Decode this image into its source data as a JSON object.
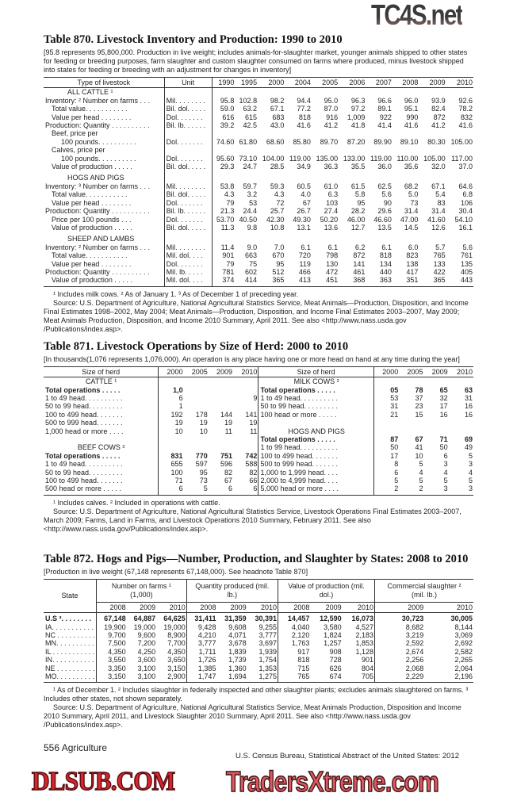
{
  "t870": {
    "title": "Table 870. Livestock Inventory and Production: 1990 to 2010",
    "headnote": "[95.8 represents 95,800,000. Production in live weight; includes animals-for-slaughter market, younger animals shipped to other states for feeding or breeding purposes, farm slaughter and custom slaughter consumed on farms where produced, minus livestock shipped into states for feeding or breeding with an adjustment for changes in inventory]",
    "col_type": "Type of livestock",
    "col_unit": "Unit",
    "years": [
      "1990",
      "1995",
      "2000",
      "2004",
      "2005",
      "2006",
      "2007",
      "2008",
      "2009",
      "2010"
    ],
    "rows": [
      {
        "kind": "section",
        "label": "ALL CATTLE ¹"
      },
      {
        "label": "Inventory: ² Number on farms . . .",
        "indent": 0,
        "unit": "Mil. . . . . . . .",
        "values": [
          "95.8",
          "102.8",
          "98.2",
          "94.4",
          "95.0",
          "96.3",
          "96.6",
          "96.0",
          "93.9",
          "92.6"
        ]
      },
      {
        "label": "Total value. . . . . . . . . . .",
        "indent": 1,
        "unit": "Bil. dol. . . . .",
        "values": [
          "59.0",
          "63.2",
          "67.1",
          "77.2",
          "87.0",
          "97.2",
          "89.1",
          "95.1",
          "82.4",
          "78.2"
        ]
      },
      {
        "label": "Value per head . . . . . . . .",
        "indent": 1,
        "unit": "Dol. . . . . . .",
        "values": [
          "616",
          "615",
          "683",
          "818",
          "916",
          "1,009",
          "922",
          "990",
          "872",
          "832"
        ]
      },
      {
        "label": "Production: Quantity . . . . . . . . . .",
        "indent": 0,
        "unit": "Bil. lb. . . . . .",
        "values": [
          "39.2",
          "42.5",
          "43.0",
          "41.6",
          "41.2",
          "41.8",
          "41.4",
          "41.6",
          "41.2",
          "41.6"
        ]
      },
      {
        "label": "Beef, price per",
        "indent": 1,
        "unit": "",
        "values": []
      },
      {
        "label": "100 pounds. . . . . . . . . .",
        "indent": 2,
        "unit": "Dol. . . . . . .",
        "values": [
          "74.60",
          "61.80",
          "68.60",
          "85.80",
          "89.70",
          "87.20",
          "89.90",
          "89.10",
          "80.30",
          "105.00"
        ]
      },
      {
        "label": "Calves, price per",
        "indent": 1,
        "unit": "",
        "values": []
      },
      {
        "label": "100 pounds. . . . . . . . . .",
        "indent": 2,
        "unit": "Dol. . . . . . .",
        "values": [
          "95.60",
          "73.10",
          "104.00",
          "119.00",
          "135.00",
          "133.00",
          "119.00",
          "110.00",
          "105.00",
          "117.00"
        ]
      },
      {
        "label": "Value of production . . . . .",
        "indent": 1,
        "unit": "Bil. dol. . . . .",
        "values": [
          "29.3",
          "24.7",
          "28.5",
          "34.9",
          "36.3",
          "35.5",
          "36.0",
          "35.6",
          "32.0",
          "37.0"
        ]
      },
      {
        "kind": "section",
        "label": "HOGS AND PIGS"
      },
      {
        "label": "Inventory: ³ Number on farms . . .",
        "indent": 0,
        "unit": "Mil. . . . . . . .",
        "values": [
          "53.8",
          "59.7",
          "59.3",
          "60.5",
          "61.0",
          "61.5",
          "62.5",
          "68.2",
          "67.1",
          "64.6"
        ]
      },
      {
        "label": "Total value. . . . . . . . . . .",
        "indent": 1,
        "unit": "Bil. dol. . . . .",
        "values": [
          "4.3",
          "3.2",
          "4.3",
          "4.0",
          "6.3",
          "5.8",
          "5.6",
          "5.0",
          "5.4",
          "6.8"
        ]
      },
      {
        "label": "Value per head . . . . . . . .",
        "indent": 1,
        "unit": "Dol. . . . . . .",
        "values": [
          "79",
          "53",
          "72",
          "67",
          "103",
          "95",
          "90",
          "73",
          "83",
          "106"
        ]
      },
      {
        "label": "Production: Quantity . . . . . . . . . .",
        "indent": 0,
        "unit": "Bil. lb. . . . . .",
        "values": [
          "21.3",
          "24.4",
          "25.7",
          "26.7",
          "27.4",
          "28.2",
          "29.6",
          "31.4",
          "31.4",
          "30.4"
        ]
      },
      {
        "label": "Price per 100 pounds . . .",
        "indent": 1,
        "unit": "Dol. . . . . . .",
        "values": [
          "53.70",
          "40.50",
          "42.30",
          "49.30",
          "50.20",
          "46.00",
          "46.60",
          "47.00",
          "41.60",
          "54.10"
        ]
      },
      {
        "label": "Value of production . . . . .",
        "indent": 1,
        "unit": "Bil. dol. . . . .",
        "values": [
          "11.3",
          "9.8",
          "10.8",
          "13.1",
          "13.6",
          "12.7",
          "13.5",
          "14.5",
          "12.6",
          "16.1"
        ]
      },
      {
        "kind": "section",
        "label": "SHEEP AND LAMBS"
      },
      {
        "label": "Inventory: ² Number on farms . . .",
        "indent": 0,
        "unit": "Mil. . . . . . . .",
        "values": [
          "11.4",
          "9.0",
          "7.0",
          "6.1",
          "6.1",
          "6.2",
          "6.1",
          "6.0",
          "5.7",
          "5.6"
        ]
      },
      {
        "label": "Total value. . . . . . . . . . .",
        "indent": 1,
        "unit": "Mil. dol. . . .",
        "values": [
          "901",
          "663",
          "670",
          "720",
          "798",
          "872",
          "818",
          "823",
          "765",
          "761"
        ]
      },
      {
        "label": "Value per head . . . . . . . .",
        "indent": 1,
        "unit": "Dol. . . . . . .",
        "values": [
          "79",
          "75",
          "95",
          "119",
          "130",
          "141",
          "134",
          "138",
          "133",
          "135"
        ]
      },
      {
        "label": "Production: Quantity . . . . . . . . . .",
        "indent": 0,
        "unit": "Mil. lb. . . . .",
        "values": [
          "781",
          "602",
          "512",
          "466",
          "472",
          "461",
          "440",
          "417",
          "422",
          "405"
        ]
      },
      {
        "label": "Value of production . . . . .",
        "indent": 1,
        "unit": "Mil. dol. . . .",
        "values": [
          "374",
          "414",
          "365",
          "413",
          "451",
          "368",
          "363",
          "351",
          "365",
          "443"
        ]
      }
    ],
    "footnotes": "¹ Includes milk cows. ² As of January 1. ³ As of December 1 of preceding year.",
    "source": "Source: U.S. Department of Agriculture, National Agricultural Statistics Service, Meat Animals—Production, Disposition, and Income Final Estimates 1998–2002, May 2004; Meat Animals—Production, Disposition, and Income Final Estimates 2003–2007, May 2009; Meat Animals Production, Disposition, and Income 2010 Summary, April 2011. See also <http://www.nass.usda.gov /Publications/index.asp>."
  },
  "t871": {
    "title": "Table 871. Livestock Operations by Size of Herd: 2000 to 2010",
    "headnote": "[In thousands(1,076 represents 1,076,000). An operation is any place having one or more head on hand at any time during the year]",
    "col_size": "Size of herd",
    "years": [
      "2000",
      "2005",
      "2009",
      "2010"
    ],
    "left": [
      {
        "kind": "section",
        "label": "CATTLE ¹"
      },
      {
        "label": "Total operations . . . . .",
        "bold": true,
        "values": [
          "1,0",
          "",
          "",
          ""
        ]
      },
      {
        "label": "1 to 49 head. . . . . . . . . .",
        "values": [
          "6",
          "",
          "",
          "9"
        ]
      },
      {
        "label": "50 to 99 head. . . . . . . . .",
        "values": [
          "1",
          "",
          "",
          ""
        ]
      },
      {
        "label": "100 to 499 head. . . . . . .",
        "values": [
          "192",
          "178",
          "144",
          "141"
        ]
      },
      {
        "label": "500 to 999 head. . . . . . .",
        "values": [
          "19",
          "19",
          "19",
          "19"
        ]
      },
      {
        "label": "1,000 head or more . . . .",
        "values": [
          "10",
          "10",
          "11",
          "11"
        ]
      },
      {
        "kind": "blank"
      },
      {
        "kind": "section",
        "label": "BEEF COWS ²"
      },
      {
        "label": "Total operations . . . . .",
        "bold": true,
        "values": [
          "831",
          "770",
          "751",
          "742"
        ]
      },
      {
        "label": "1 to 49 head. . . . . . . . . .",
        "values": [
          "655",
          "597",
          "596",
          "588"
        ]
      },
      {
        "label": "50 to 99 head. . . . . . . . .",
        "values": [
          "100",
          "95",
          "82",
          "82"
        ]
      },
      {
        "label": "100 to 499 head. . . . . . .",
        "values": [
          "71",
          "73",
          "67",
          "66"
        ]
      },
      {
        "label": "500 head or more . . . . .",
        "values": [
          "6",
          "5",
          "6",
          "6"
        ]
      }
    ],
    "right": [
      {
        "kind": "section",
        "label": "MILK COWS ²"
      },
      {
        "label": "Total operations . . . . .",
        "bold": true,
        "values": [
          "05",
          "78",
          "65",
          "63"
        ]
      },
      {
        "label": "1 to 49 head. . . . . . . . . .",
        "values": [
          "53",
          "37",
          "32",
          "31"
        ]
      },
      {
        "label": "50 to 99 head. . . . . . . . .",
        "values": [
          "31",
          "23",
          "17",
          "16"
        ]
      },
      {
        "label": "100 head or more . . . . .",
        "values": [
          "21",
          "15",
          "16",
          "16"
        ]
      },
      {
        "kind": "blank"
      },
      {
        "kind": "section",
        "label": "HOGS AND PIGS"
      },
      {
        "label": "Total operations . . . . .",
        "bold": true,
        "values": [
          "87",
          "67",
          "71",
          "69"
        ]
      },
      {
        "label": "1 to 99 head. . . . . . . . . .",
        "values": [
          "50",
          "41",
          "50",
          "49"
        ]
      },
      {
        "label": "100 to 499 head. . . . . . .",
        "values": [
          "17",
          "10",
          "6",
          "5"
        ]
      },
      {
        "label": "500 to 999 head. . . . . . .",
        "values": [
          "8",
          "5",
          "3",
          "3"
        ]
      },
      {
        "label": "1,000 to 1,999 head. . . .",
        "values": [
          "6",
          "4",
          "4",
          "4"
        ]
      },
      {
        "label": "2,000 to 4,999 head. . . .",
        "values": [
          "5",
          "5",
          "5",
          "5"
        ]
      },
      {
        "label": "5,000 head or more . . . .",
        "values": [
          "2",
          "2",
          "3",
          "3"
        ]
      }
    ],
    "footnotes": "¹ Includes calves. ² Included in operations with cattle.",
    "source": "Source: U.S. Department of Agriculture, National Agricultural Statistics Service, Livestock Operations Final Estimates 2003–2007, March 2009; Farms, Land in Farms, and Livestock Operations 2010 Summary, February 2011. See also <http://www.nass.usda.gov/Publications/index.asp>."
  },
  "t872": {
    "title": "Table 872. Hogs and Pigs—Number, Production, and Slaughter by States: 2008 to 2010",
    "headnote": "[Production in live weight (67,148 represents 67,148,000). See headnote Table 870]",
    "col_state": "State",
    "groups": [
      {
        "label": "Number on farms ¹ (1,000)",
        "years": [
          "2008",
          "2009",
          "2010"
        ]
      },
      {
        "label": "Quantity produced (mil. lb.)",
        "years": [
          "2008",
          "2009",
          "2010"
        ]
      },
      {
        "label": "Value of production (mil. dol.)",
        "years": [
          "2008",
          "2009",
          "2010"
        ]
      },
      {
        "label": "Commercial slaughter ² (mil. lb.)",
        "years": [
          "2009",
          "2010"
        ]
      }
    ],
    "rows": [
      {
        "state": "U.S ³. . . . . . . .",
        "bold": true,
        "values": [
          "67,148",
          "64,887",
          "64,625",
          "31,411",
          "31,359",
          "30,391",
          "14,457",
          "12,590",
          "16,073",
          "30,723",
          "30,005"
        ]
      },
      {
        "state": "IA. . . . . . . . . . .",
        "values": [
          "19,900",
          "19,000",
          "19,000",
          "9,428",
          "9,608",
          "9,255",
          "4,040",
          "3,580",
          "4,527",
          "8,682",
          "8,144"
        ]
      },
      {
        "state": "NC . . . . . . . . . .",
        "values": [
          "9,700",
          "9,600",
          "8,900",
          "4,210",
          "4,071",
          "3,777",
          "2,120",
          "1,824",
          "2,183",
          "3,219",
          "3,069"
        ]
      },
      {
        "state": "MN. . . . . . . . . .",
        "values": [
          "7,500",
          "7,200",
          "7,700",
          "3,777",
          "3,678",
          "3,697",
          "1,763",
          "1,257",
          "1,853",
          "2,592",
          "2,692"
        ]
      },
      {
        "state": "IL . . . . . . . . . . .",
        "values": [
          "4,350",
          "4,250",
          "4,350",
          "1,711",
          "1,839",
          "1,939",
          "917",
          "908",
          "1,128",
          "2,674",
          "2,582"
        ]
      },
      {
        "state": "IN. . . . . . . . . . .",
        "values": [
          "3,550",
          "3,600",
          "3,650",
          "1,726",
          "1,739",
          "1,754",
          "818",
          "728",
          "901",
          "2,256",
          "2,265"
        ]
      },
      {
        "state": "NE . . . . . . . . . .",
        "values": [
          "3,350",
          "3,100",
          "3,150",
          "1,385",
          "1,360",
          "1,353",
          "715",
          "626",
          "804",
          "2,068",
          "2,064"
        ]
      },
      {
        "state": "MO. . . . . . . . . .",
        "values": [
          "3,150",
          "3,100",
          "2,900",
          "1,747",
          "1,694",
          "1,275",
          "765",
          "674",
          "705",
          "2,229",
          "2,196"
        ]
      }
    ],
    "footnotes": "¹ As of December 1. ² Includes slaughter in federally inspected and other slaughter plants; excludes animals slaughtered on farms. ³ Includes other states, not shown separately.",
    "source": "Source: U.S. Department of Agriculture, National Agricultural Statistics Service, Meat Animals Production, Disposition and Income 2010 Summary, April 2011, and Livestock Slaughter 2010 Summary, April 2011. See also <http://www.nass.usda.gov /Publications/index.asp>."
  },
  "footer": {
    "page": "556  Agriculture",
    "publication": "U.S. Census Bureau, Statistical Abstract of the United States: 2012"
  },
  "watermarks": {
    "top": "TC4S.net",
    "middle": "DLSUB.COM",
    "bottom": "TradersXtreme.com"
  }
}
